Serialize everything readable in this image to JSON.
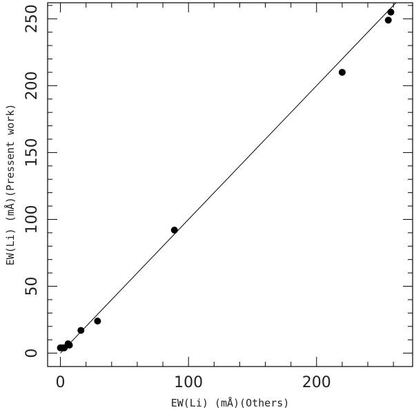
{
  "chart_data": {
    "type": "scatter",
    "title": "",
    "xlabel": "EW(Li) (mÅ)(Others)",
    "ylabel": "EW(Li) (mÅ)(Pressent work)",
    "xlim": [
      -10,
      275
    ],
    "ylim": [
      -10,
      262
    ],
    "x_ticks_major": [
      0,
      100,
      200
    ],
    "y_ticks_major": [
      0,
      50,
      100,
      150,
      200,
      250
    ],
    "grid": false,
    "legend": "none",
    "series": [
      {
        "x": [
          0,
          2,
          3,
          6,
          7,
          16,
          29,
          89,
          220,
          256,
          258
        ],
        "y": [
          4,
          4,
          4,
          7,
          6,
          17,
          24,
          92,
          210,
          249,
          255
        ]
      }
    ],
    "reference_line": {
      "x": [
        0,
        262
      ],
      "y": [
        0,
        262
      ]
    },
    "colors": {
      "marker": "#000000",
      "line": "#000000",
      "frame": "#000000"
    }
  }
}
